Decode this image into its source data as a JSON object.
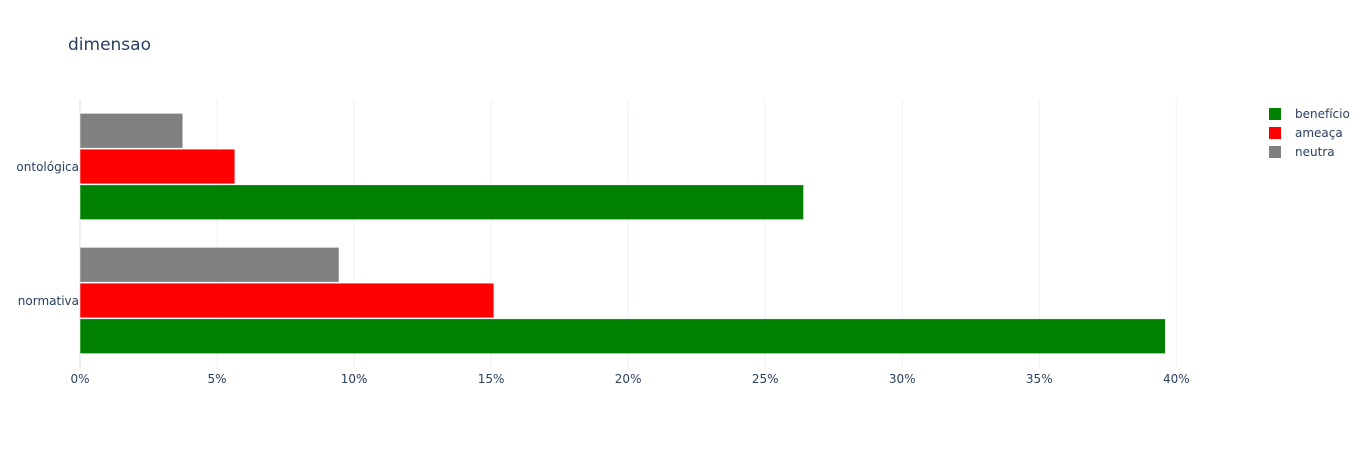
{
  "chart_data": {
    "type": "bar",
    "orientation": "horizontal",
    "title": "dimensao",
    "xlabel": "",
    "ylabel": "",
    "categories": [
      "ontológica",
      "normativa"
    ],
    "series": [
      {
        "name": "benefício",
        "color": "#008000",
        "values": [
          26.4,
          39.6
        ]
      },
      {
        "name": "ameaça",
        "color": "#ff0000",
        "values": [
          5.65,
          15.1
        ]
      },
      {
        "name": "neutra",
        "color": "#808080",
        "values": [
          3.75,
          9.45
        ]
      }
    ],
    "xlim": [
      0,
      40.5
    ],
    "x_ticks": [
      0,
      5,
      10,
      15,
      20,
      25,
      30,
      35,
      40
    ],
    "x_tick_labels": [
      "0%",
      "5%",
      "10%",
      "15%",
      "20%",
      "25%",
      "30%",
      "35%",
      "40%"
    ],
    "grid": true,
    "legend_position": "top-right"
  }
}
